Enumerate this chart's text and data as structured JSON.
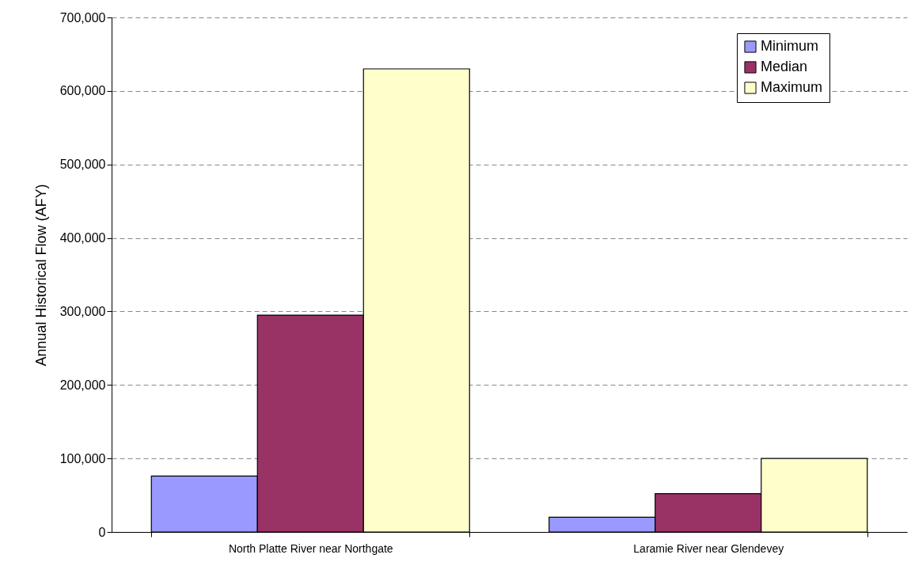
{
  "chart_data": {
    "type": "bar",
    "ylabel": "Annual Historical Flow (AFY)",
    "categories": [
      "North Platte River near Northgate",
      "Laramie River near Glendevey"
    ],
    "series": [
      {
        "name": "Minimum",
        "color": "#9999ff",
        "values": [
          76000,
          20000
        ]
      },
      {
        "name": "Median",
        "color": "#993366",
        "values": [
          295000,
          52000
        ]
      },
      {
        "name": "Maximum",
        "color": "#ffffcc",
        "values": [
          630000,
          100000
        ]
      }
    ],
    "ylim": [
      0,
      700000
    ],
    "yticks": [
      0,
      {
        "value": 100000,
        "label": "100,000"
      },
      {
        "value": 200000,
        "label": "200,000"
      },
      {
        "value": 300000,
        "label": "300,000"
      },
      {
        "value": 400000,
        "label": "400,000"
      },
      {
        "value": 500000,
        "label": "500,000"
      },
      {
        "value": 600000,
        "label": "600,000"
      },
      {
        "value": 700000,
        "label": "700,000"
      }
    ],
    "grid": "y",
    "legend": "top right"
  }
}
